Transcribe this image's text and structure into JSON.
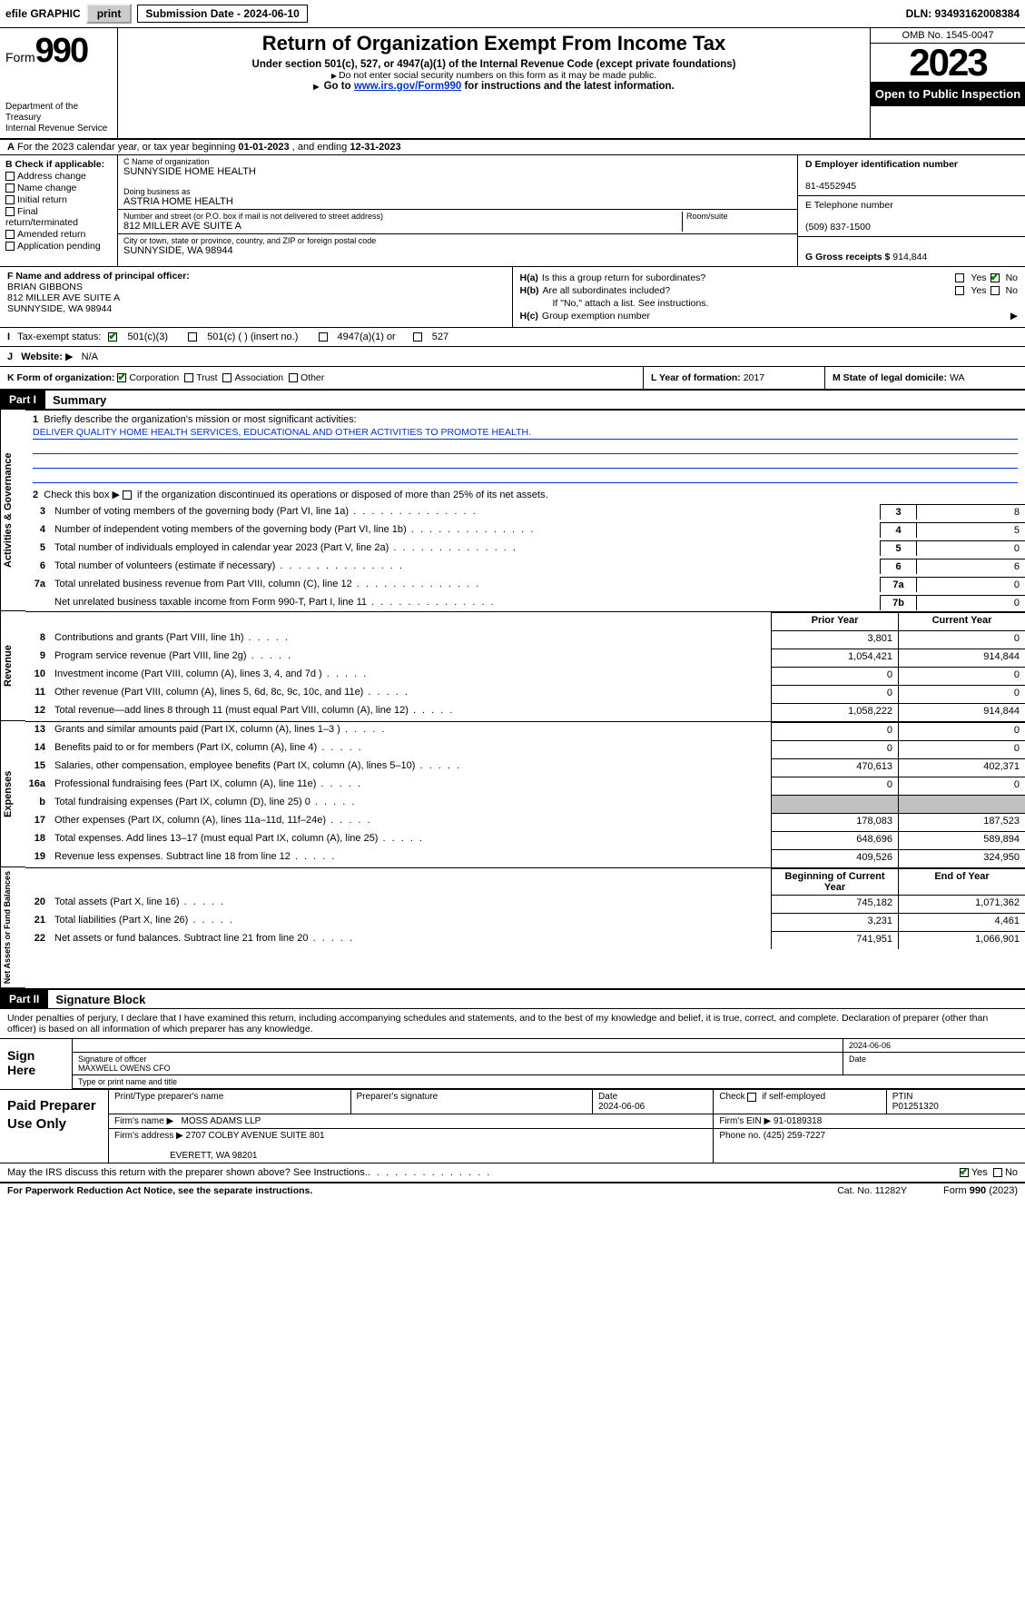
{
  "topbar": {
    "efile": "efile GRAPHIC",
    "print": "print",
    "submission_label": "Submission Date - 2024-06-10",
    "dln": "DLN: 93493162008384"
  },
  "header": {
    "form_word": "Form",
    "form_number": "990",
    "dept": "Department of the Treasury\nInternal Revenue Service",
    "main_title": "Return of Organization Exempt From Income Tax",
    "sub1": "Under section 501(c), 527, or 4947(a)(1) of the Internal Revenue Code (except private foundations)",
    "sub2": "Do not enter social security numbers on this form as it may be made public.",
    "sub3_pre": "Go to ",
    "sub3_link": "www.irs.gov/Form990",
    "sub3_post": " for instructions and the latest information.",
    "omb": "OMB No. 1545-0047",
    "year": "2023",
    "open": "Open to Public Inspection"
  },
  "section_a": {
    "text_pre": "For the 2023 calendar year, or tax year beginning ",
    "begin": "01-01-2023",
    "mid": " , and ending ",
    "end": "12-31-2023"
  },
  "box_b": {
    "label": "B Check if applicable:",
    "opts": [
      "Address change",
      "Name change",
      "Initial return",
      "Final return/terminated",
      "Amended return",
      "Application pending"
    ]
  },
  "box_c": {
    "name_label": "C Name of organization",
    "name": "SUNNYSIDE HOME HEALTH",
    "dba_label": "Doing business as",
    "dba": "ASTRIA HOME HEALTH",
    "street_label": "Number and street (or P.O. box if mail is not delivered to street address)",
    "room_label": "Room/suite",
    "street": "812 MILLER AVE SUITE A",
    "city_label": "City or town, state or province, country, and ZIP or foreign postal code",
    "city": "SUNNYSIDE, WA  98944"
  },
  "box_d": {
    "label": "D Employer identification number",
    "ein": "81-4552945",
    "tel_label": "E Telephone number",
    "tel": "(509) 837-1500",
    "gross_label": "G Gross receipts $ ",
    "gross": "914,844"
  },
  "box_f": {
    "label": "F  Name and address of principal officer:",
    "name": "BRIAN GIBBONS",
    "addr1": "812 MILLER AVE SUITE A",
    "addr2": "SUNNYSIDE, WA  98944"
  },
  "box_h": {
    "ha_label": "Is this a group return for subordinates?",
    "ha_tag": "H(a)",
    "hb_label": "Are all subordinates included?",
    "hb_tag": "H(b)",
    "hb_note": "If \"No,\" attach a list. See instructions.",
    "hc_label": "Group exemption number",
    "hc_tag": "H(c)",
    "yes": "Yes",
    "no": "No"
  },
  "status": {
    "label_i": "I",
    "label": "Tax-exempt status:",
    "o1": "501(c)(3)",
    "o2": "501(c) (  ) (insert no.)",
    "o3": "4947(a)(1) or",
    "o4": "527"
  },
  "website": {
    "label_j": "J",
    "label": "Website:",
    "val": "N/A",
    "arrow": "▶"
  },
  "row_k": {
    "label": "K Form of organization:",
    "opts": [
      "Corporation",
      "Trust",
      "Association",
      "Other"
    ],
    "l_label": "L Year of formation: ",
    "l_val": "2017",
    "m_label": "M State of legal domicile: ",
    "m_val": "WA"
  },
  "part1": {
    "tag": "Part I",
    "title": "Summary"
  },
  "mission": {
    "q1_num": "1",
    "q1": "Briefly describe the organization's mission or most significant activities:",
    "text": "DELIVER QUALITY HOME HEALTH SERVICES, EDUCATIONAL AND OTHER ACTIVITIES TO PROMOTE HEALTH.",
    "q2_num": "2",
    "q2": "Check this box      if the organization discontinued its operations or disposed of more than 25% of its net assets."
  },
  "gov_rows": [
    {
      "n": "3",
      "t": "Number of voting members of the governing body (Part VI, line 1a)",
      "b": "3",
      "v": "8"
    },
    {
      "n": "4",
      "t": "Number of independent voting members of the governing body (Part VI, line 1b)",
      "b": "4",
      "v": "5"
    },
    {
      "n": "5",
      "t": "Total number of individuals employed in calendar year 2023 (Part V, line 2a)",
      "b": "5",
      "v": "0"
    },
    {
      "n": "6",
      "t": "Total number of volunteers (estimate if necessary)",
      "b": "6",
      "v": "6"
    },
    {
      "n": "7a",
      "t": "Total unrelated business revenue from Part VIII, column (C), line 12",
      "b": "7a",
      "v": "0"
    },
    {
      "n": "",
      "t": "Net unrelated business taxable income from Form 990-T, Part I, line 11",
      "b": "7b",
      "v": "0"
    }
  ],
  "fin_headers": {
    "py": "Prior Year",
    "cy": "Current Year",
    "bcy": "Beginning of Current Year",
    "eoy": "End of Year"
  },
  "revenue_rows": [
    {
      "n": "8",
      "t": "Contributions and grants (Part VIII, line 1h)",
      "py": "3,801",
      "cy": "0"
    },
    {
      "n": "9",
      "t": "Program service revenue (Part VIII, line 2g)",
      "py": "1,054,421",
      "cy": "914,844"
    },
    {
      "n": "10",
      "t": "Investment income (Part VIII, column (A), lines 3, 4, and 7d )",
      "py": "0",
      "cy": "0"
    },
    {
      "n": "11",
      "t": "Other revenue (Part VIII, column (A), lines 5, 6d, 8c, 9c, 10c, and 11e)",
      "py": "0",
      "cy": "0"
    },
    {
      "n": "12",
      "t": "Total revenue—add lines 8 through 11 (must equal Part VIII, column (A), line 12)",
      "py": "1,058,222",
      "cy": "914,844"
    }
  ],
  "expense_rows": [
    {
      "n": "13",
      "t": "Grants and similar amounts paid (Part IX, column (A), lines 1–3 )",
      "py": "0",
      "cy": "0"
    },
    {
      "n": "14",
      "t": "Benefits paid to or for members (Part IX, column (A), line 4)",
      "py": "0",
      "cy": "0"
    },
    {
      "n": "15",
      "t": "Salaries, other compensation, employee benefits (Part IX, column (A), lines 5–10)",
      "py": "470,613",
      "cy": "402,371"
    },
    {
      "n": "16a",
      "t": "Professional fundraising fees (Part IX, column (A), line 11e)",
      "py": "0",
      "cy": "0"
    },
    {
      "n": "b",
      "t": "Total fundraising expenses (Part IX, column (D), line 25) 0",
      "py": "GREY",
      "cy": "GREY"
    },
    {
      "n": "17",
      "t": "Other expenses (Part IX, column (A), lines 11a–11d, 11f–24e)",
      "py": "178,083",
      "cy": "187,523"
    },
    {
      "n": "18",
      "t": "Total expenses. Add lines 13–17 (must equal Part IX, column (A), line 25)",
      "py": "648,696",
      "cy": "589,894"
    },
    {
      "n": "19",
      "t": "Revenue less expenses. Subtract line 18 from line 12",
      "py": "409,526",
      "cy": "324,950"
    }
  ],
  "net_rows": [
    {
      "n": "20",
      "t": "Total assets (Part X, line 16)",
      "py": "745,182",
      "cy": "1,071,362"
    },
    {
      "n": "21",
      "t": "Total liabilities (Part X, line 26)",
      "py": "3,231",
      "cy": "4,461"
    },
    {
      "n": "22",
      "t": "Net assets or fund balances. Subtract line 21 from line 20",
      "py": "741,951",
      "cy": "1,066,901"
    }
  ],
  "vlabels": {
    "gov": "Activities & Governance",
    "rev": "Revenue",
    "exp": "Expenses",
    "net": "Net Assets or Fund Balances"
  },
  "part2": {
    "tag": "Part II",
    "title": "Signature Block"
  },
  "sig": {
    "penalty": "Under penalties of perjury, I declare that I have examined this return, including accompanying schedules and statements, and to the best of my knowledge and belief, it is true, correct, and complete. Declaration of preparer (other than officer) is based on all information of which preparer has any knowledge.",
    "sign_here": "Sign Here",
    "sig_label": "Signature of officer",
    "date_label": "Date",
    "date": "2024-06-06",
    "officer": "MAXWELL OWENS CFO",
    "type_label": "Type or print name and title"
  },
  "preparer": {
    "label": "Paid Preparer Use Only",
    "h1": "Print/Type preparer's name",
    "h2": "Preparer's signature",
    "h3_label": "Date",
    "h3": "2024-06-06",
    "h4_label": "Check        if self-employed",
    "h5_label": "PTIN",
    "h5": "P01251320",
    "firm_name_label": "Firm's name",
    "firm_name": "MOSS ADAMS LLP",
    "firm_ein_label": "Firm's EIN",
    "firm_ein": "91-0189318",
    "firm_addr_label": "Firm's address",
    "firm_addr1": "2707 COLBY AVENUE SUITE 801",
    "firm_addr2": "EVERETT, WA  98201",
    "phone_label": "Phone no.",
    "phone": "(425) 259-7227"
  },
  "discuss": {
    "text": "May the IRS discuss this return with the preparer shown above? See Instructions.",
    "yes": "Yes",
    "no": "No"
  },
  "footer": {
    "left": "For Paperwork Reduction Act Notice, see the separate instructions.",
    "center": "Cat. No. 11282Y",
    "right_pre": "Form ",
    "right_form": "990",
    "right_post": " (2023)"
  }
}
